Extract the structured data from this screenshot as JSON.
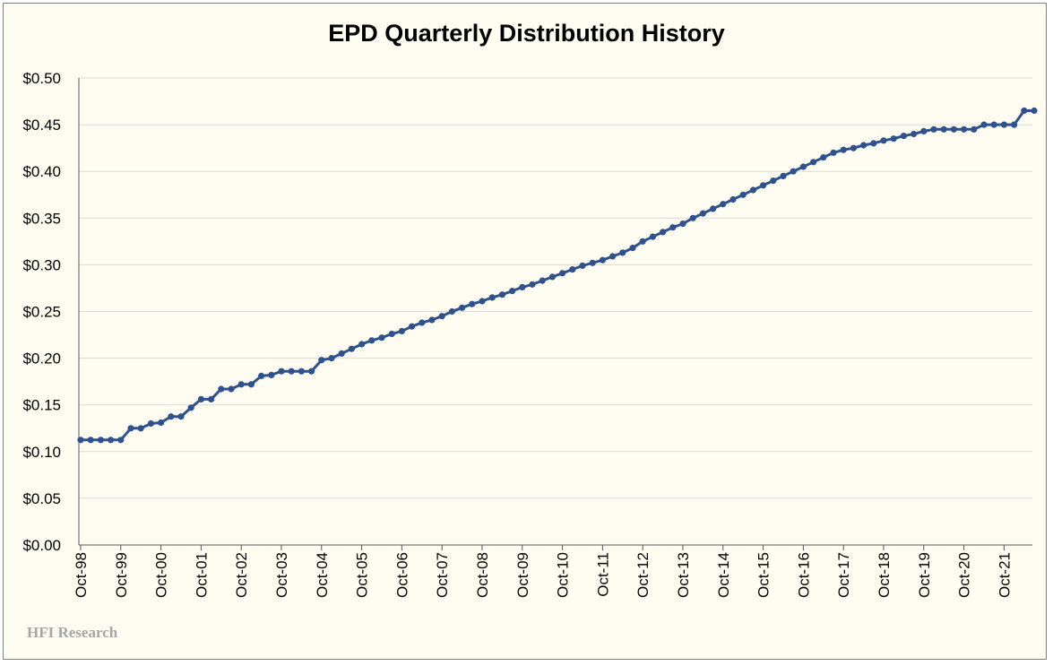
{
  "chart_data": {
    "type": "line",
    "title": "EPD Quarterly Distribution History",
    "xlabel": "",
    "ylabel": "",
    "ylim": [
      0,
      0.5
    ],
    "y_ticks": [
      "$0.00",
      "$0.05",
      "$0.10",
      "$0.15",
      "$0.20",
      "$0.25",
      "$0.30",
      "$0.35",
      "$0.40",
      "$0.45",
      "$0.50"
    ],
    "x_tick_labels": [
      "Oct-98",
      "Oct-99",
      "Oct-00",
      "Oct-01",
      "Oct-02",
      "Oct-03",
      "Oct-04",
      "Oct-05",
      "Oct-06",
      "Oct-07",
      "Oct-08",
      "Oct-09",
      "Oct-10",
      "Oct-11",
      "Oct-12",
      "Oct-13",
      "Oct-14",
      "Oct-15",
      "Oct-16",
      "Oct-17",
      "Oct-18",
      "Oct-19",
      "Oct-20",
      "Oct-21"
    ],
    "x_start": "Oct-98",
    "x_frequency": "quarterly",
    "grid": "horizontal",
    "legend": "none",
    "series": [
      {
        "color": "#2f528f",
        "values": [
          0.1125,
          0.1125,
          0.1125,
          0.1125,
          0.1125,
          0.125,
          0.125,
          0.13,
          0.131,
          0.1375,
          0.1375,
          0.147,
          0.156,
          0.156,
          0.167,
          0.167,
          0.172,
          0.172,
          0.181,
          0.182,
          0.186,
          0.186,
          0.186,
          0.186,
          0.198,
          0.2,
          0.205,
          0.21,
          0.215,
          0.219,
          0.222,
          0.226,
          0.229,
          0.234,
          0.238,
          0.241,
          0.245,
          0.25,
          0.254,
          0.258,
          0.261,
          0.265,
          0.268,
          0.272,
          0.276,
          0.279,
          0.283,
          0.287,
          0.291,
          0.295,
          0.299,
          0.302,
          0.305,
          0.309,
          0.313,
          0.318,
          0.325,
          0.33,
          0.335,
          0.34,
          0.344,
          0.35,
          0.355,
          0.36,
          0.365,
          0.37,
          0.375,
          0.38,
          0.385,
          0.39,
          0.395,
          0.4,
          0.405,
          0.41,
          0.415,
          0.42,
          0.423,
          0.425,
          0.428,
          0.43,
          0.433,
          0.435,
          0.438,
          0.44,
          0.443,
          0.445,
          0.445,
          0.445,
          0.445,
          0.445,
          0.45,
          0.45,
          0.45,
          0.45,
          0.465,
          0.465
        ]
      }
    ]
  },
  "watermark": "HFI Research"
}
